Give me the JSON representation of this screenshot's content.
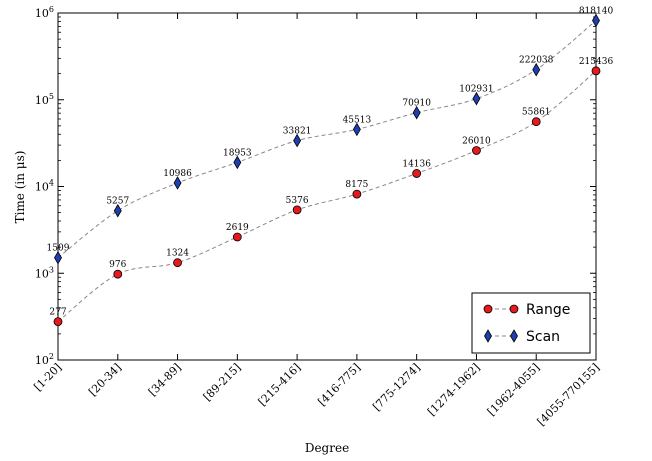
{
  "chart_data": {
    "type": "line",
    "xlabel": "Degree",
    "ylabel": "Time (in μs)",
    "yscale": "log",
    "ylim": [
      100,
      1000000
    ],
    "yticks": [
      {
        "value": 100,
        "base": "10",
        "exp": "2"
      },
      {
        "value": 1000,
        "base": "10",
        "exp": "3"
      },
      {
        "value": 10000,
        "base": "10",
        "exp": "4"
      },
      {
        "value": 100000,
        "base": "10",
        "exp": "5"
      },
      {
        "value": 1000000,
        "base": "10",
        "exp": "6"
      }
    ],
    "grid": false,
    "legend": "bottom-right",
    "categories": [
      "[1-20]",
      "[20-34]",
      "[34-89]",
      "[89-215]",
      "[215-416]",
      "[416-775]",
      "[775-1274]",
      "[1274-1962]",
      "[1962-4055]",
      "[4055-770155]"
    ],
    "series": [
      {
        "name": "Range",
        "marker": "circle",
        "color": "#e41a1c",
        "line_color": "#888888",
        "values": [
          277,
          976,
          1324,
          2619,
          5376,
          8175,
          14136,
          26010,
          55861,
          215436
        ],
        "labels": [
          "277",
          "976",
          "1324",
          "2619",
          "5376",
          "8175",
          "14136",
          "26010",
          "55861",
          "215436"
        ]
      },
      {
        "name": "Scan",
        "marker": "diamond",
        "color": "#1f3fb0",
        "line_color": "#888888",
        "values": [
          1509,
          5257,
          10986,
          18953,
          33821,
          45513,
          70910,
          102931,
          222038,
          818140
        ],
        "labels": [
          "1509",
          "5257",
          "10986",
          "18953",
          "33821",
          "45513",
          "70910",
          "102931",
          "222038",
          "818140"
        ]
      }
    ]
  }
}
